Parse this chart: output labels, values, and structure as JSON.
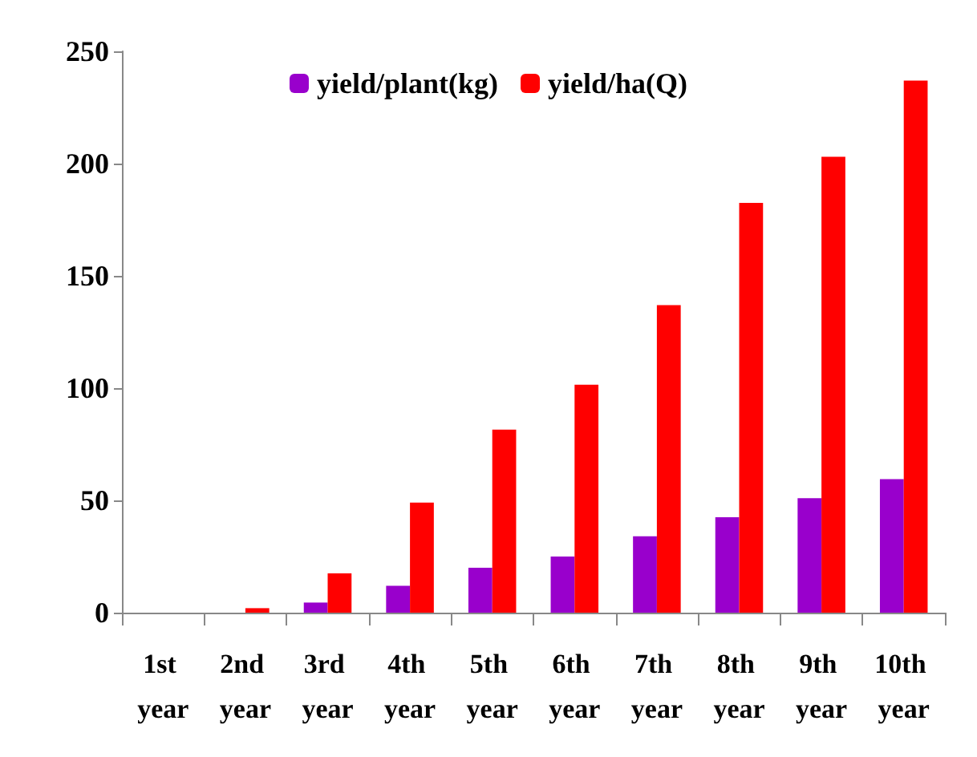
{
  "chart_data": {
    "type": "bar",
    "categories": [
      "1st year",
      "2nd year",
      "3rd year",
      "4th year",
      "5th year",
      "6th year",
      "7th year",
      "8th year",
      "9th year",
      "10th year"
    ],
    "series": [
      {
        "name": "yield/plant(kg)",
        "color": "#9900cc",
        "values": [
          0,
          0,
          4.5,
          12,
          20,
          25,
          34,
          42.5,
          51,
          59.5
        ]
      },
      {
        "name": "yield/ha(Q)",
        "color": "#ff0000",
        "values": [
          0,
          2,
          17.5,
          49,
          81.5,
          101.5,
          137,
          182.5,
          203,
          237
        ]
      }
    ],
    "ylim": [
      0,
      250
    ],
    "yticks": [
      0,
      50,
      100,
      150,
      200,
      250
    ],
    "grid": false,
    "legend": "top"
  }
}
